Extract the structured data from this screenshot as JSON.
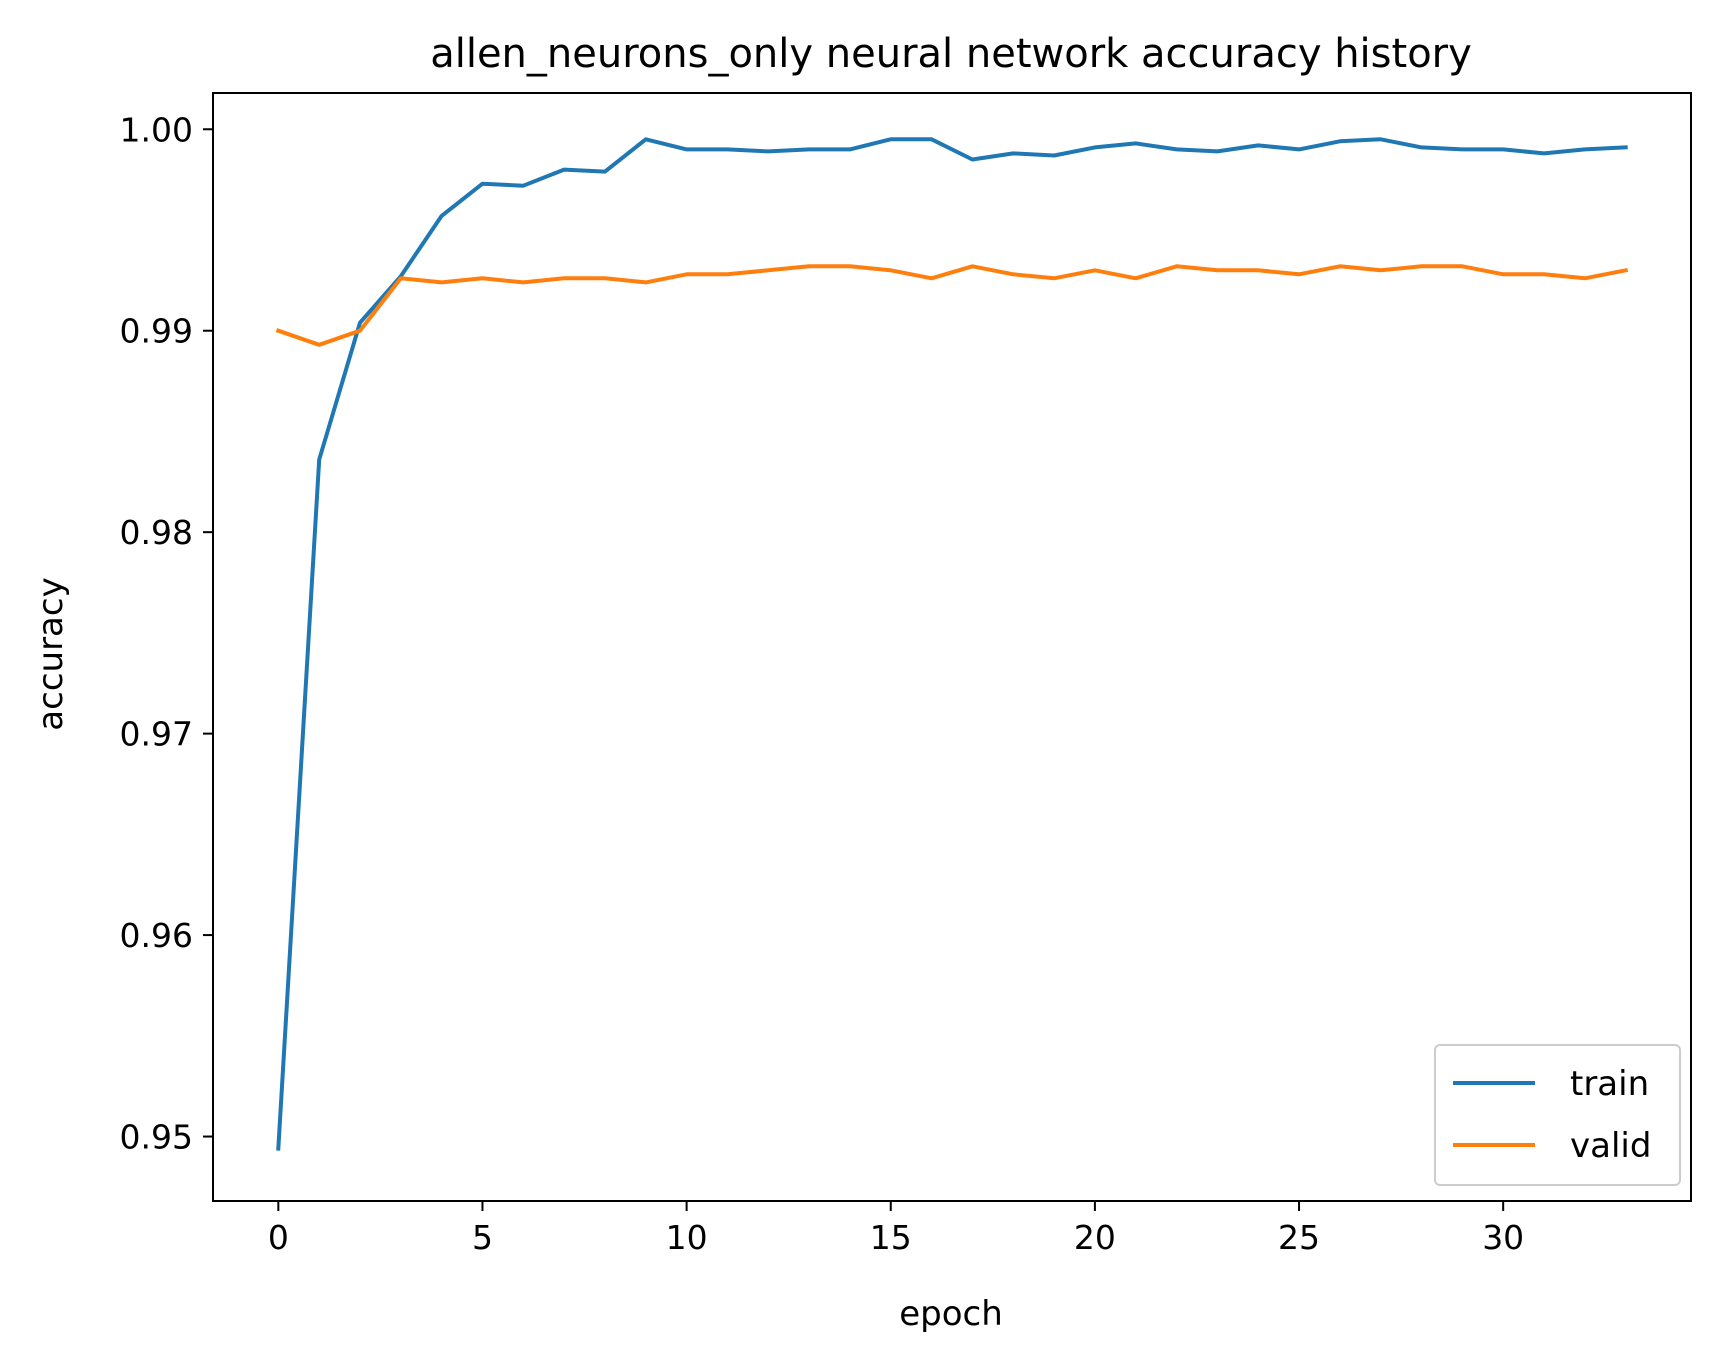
{
  "chart_data": {
    "type": "line",
    "title": "allen_neurons_only neural network accuracy history",
    "xlabel": "epoch",
    "ylabel": "accuracy",
    "xlim": [
      -1.6,
      34.6
    ],
    "ylim": [
      0.9468,
      1.0018
    ],
    "xticks": [
      0,
      5,
      10,
      15,
      20,
      25,
      30
    ],
    "xtick_labels": [
      "0",
      "5",
      "10",
      "15",
      "20",
      "25",
      "30"
    ],
    "yticks": [
      0.95,
      0.96,
      0.97,
      0.98,
      0.99,
      1.0
    ],
    "ytick_labels": [
      "0.95",
      "0.96",
      "0.97",
      "0.98",
      "0.99",
      "1.00"
    ],
    "grid": false,
    "legend_position": "lower-right",
    "x": [
      0,
      1,
      2,
      3,
      4,
      5,
      6,
      7,
      8,
      9,
      10,
      11,
      12,
      13,
      14,
      15,
      16,
      17,
      18,
      19,
      20,
      21,
      22,
      23,
      24,
      25,
      26,
      27,
      28,
      29,
      30,
      31,
      32,
      33
    ],
    "series": [
      {
        "name": "train",
        "color": "#1f77b4",
        "values": [
          0.9494,
          0.9836,
          0.9904,
          0.9927,
          0.9957,
          0.9973,
          0.9972,
          0.998,
          0.9979,
          0.9995,
          0.999,
          0.999,
          0.9989,
          0.999,
          0.999,
          0.9995,
          0.9995,
          0.9985,
          0.9988,
          0.9987,
          0.9991,
          0.9993,
          0.999,
          0.9989,
          0.9992,
          0.999,
          0.9994,
          0.9995,
          0.9991,
          0.999,
          0.999,
          0.9988,
          0.999,
          0.9991
        ]
      },
      {
        "name": "valid",
        "color": "#ff7f0e",
        "values": [
          0.99,
          0.9893,
          0.99,
          0.9926,
          0.9924,
          0.9926,
          0.9924,
          0.9926,
          0.9926,
          0.9924,
          0.9928,
          0.9928,
          0.993,
          0.9932,
          0.9932,
          0.993,
          0.9926,
          0.9932,
          0.9928,
          0.9926,
          0.993,
          0.9926,
          0.9932,
          0.993,
          0.993,
          0.9928,
          0.9932,
          0.993,
          0.9932,
          0.9932,
          0.9928,
          0.9928,
          0.9926,
          0.993
        ]
      }
    ]
  }
}
